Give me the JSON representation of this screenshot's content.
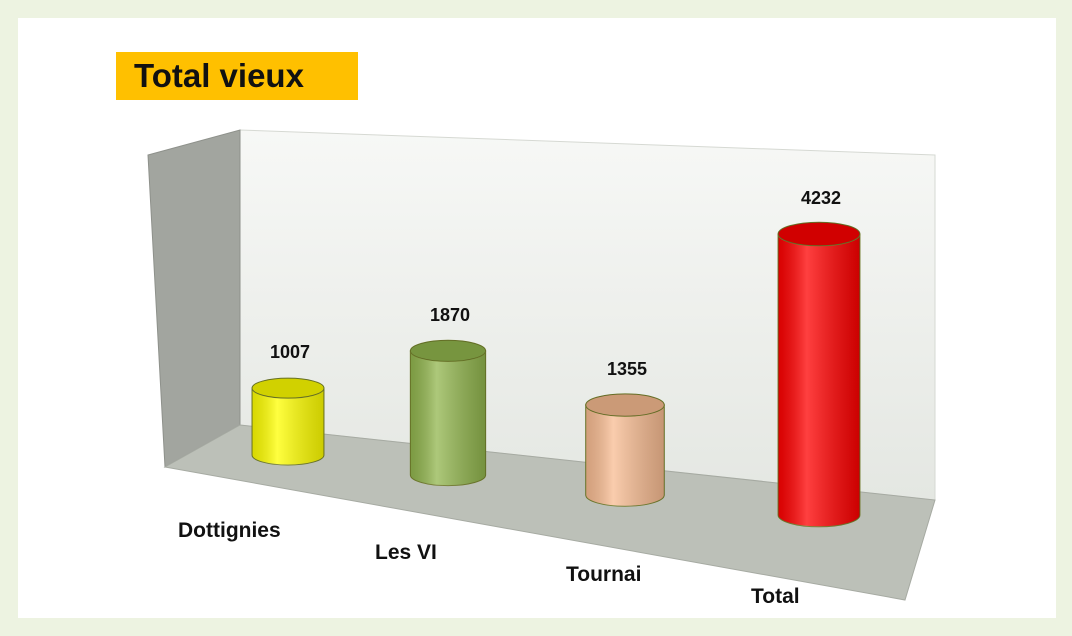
{
  "chart_data": {
    "type": "bar3d",
    "title": "Total vieux",
    "categories": [
      "Dottignies",
      "Les VI",
      "Tournai",
      "Total"
    ],
    "values": [
      1007,
      1870,
      1355,
      4232
    ],
    "colors": [
      "#ffff00",
      "#92b64e",
      "#f8bc92",
      "#ff0000"
    ]
  }
}
